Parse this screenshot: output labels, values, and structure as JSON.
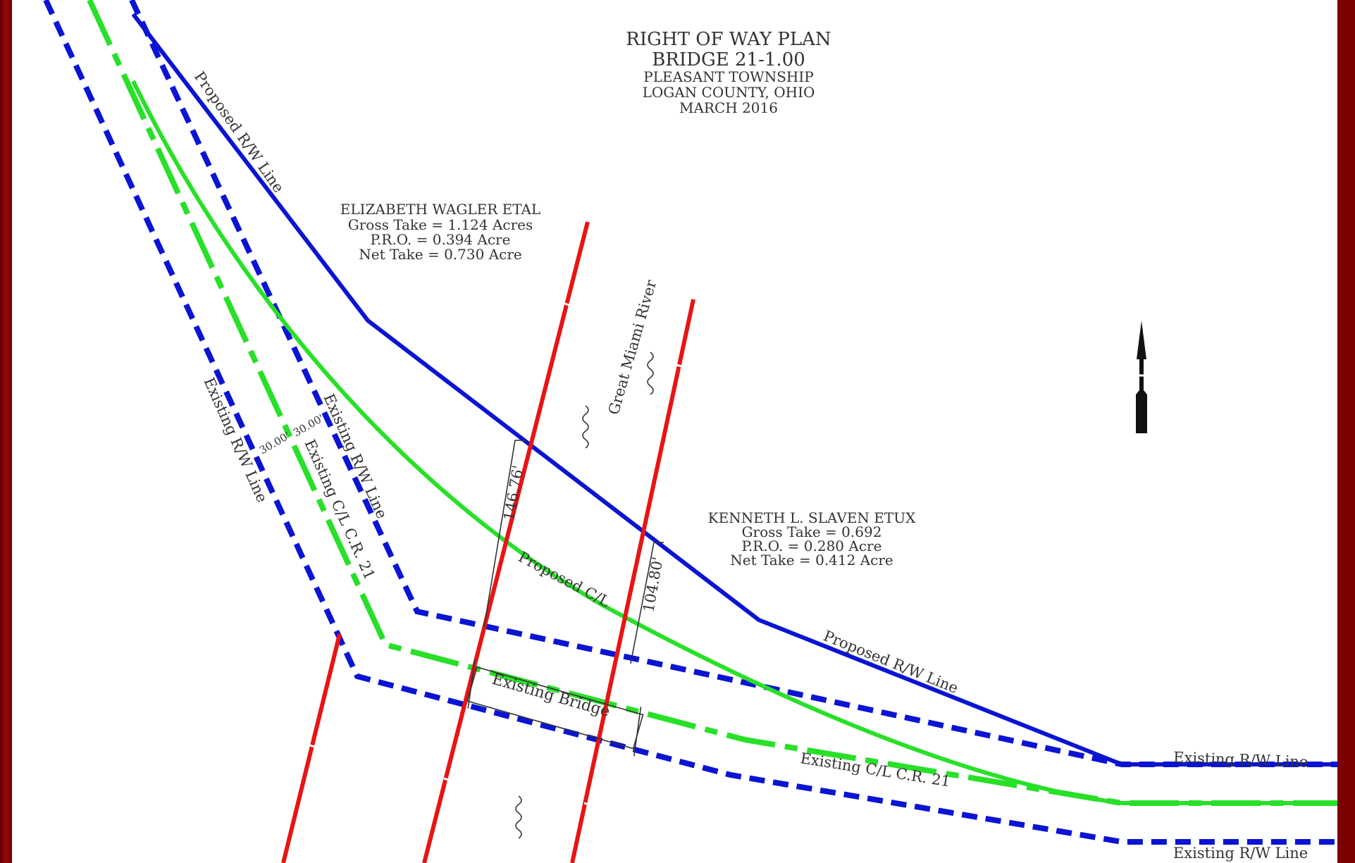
{
  "colors": {
    "frame": "#7a0000",
    "rw_line": "#0a14d2",
    "centerline": "#28e028",
    "property_line": "#e81414",
    "text": "#333333"
  },
  "title": {
    "line1": "RIGHT OF WAY PLAN",
    "line2": "BRIDGE 21-1.00",
    "line3": "PLEASANT TOWNSHIP",
    "line4": "LOGAN COUNTY, OHIO",
    "line5": "MARCH 2016"
  },
  "parcels": [
    {
      "owner": "ELIZABETH WAGLER ETAL",
      "gross": "Gross Take = 1.124 Acres",
      "pro": "P.R.O. = 0.394 Acre",
      "net": "Net Take = 0.730 Acre"
    },
    {
      "owner": "KENNETH L. SLAVEN ETUX",
      "gross": "Gross Take = 0.692",
      "pro": "P.R.O. = 0.280 Acre",
      "net": "Net Take = 0.412 Acre"
    }
  ],
  "labels": {
    "proposed_rw_upper": "Proposed R/W Line",
    "proposed_rw_lower": "Proposed R/W Line",
    "existing_rw_left": "Existing R/W Line",
    "existing_rw_right": "Existing R/W Line",
    "existing_rw_east_top": "Existing R/W Line",
    "existing_rw_east_bottom": "Existing R/W Line",
    "existing_cl_west": "Existing C/L C.R. 21",
    "existing_cl_east": "Existing C/L C.R. 21",
    "proposed_cl": "Proposed C/L",
    "river": "Great Miami River",
    "bridge": "Existing Bridge",
    "dim_146": "146.76'",
    "dim_104": "104.80'",
    "offset_left": "30.00'",
    "offset_right": "30.00'"
  }
}
